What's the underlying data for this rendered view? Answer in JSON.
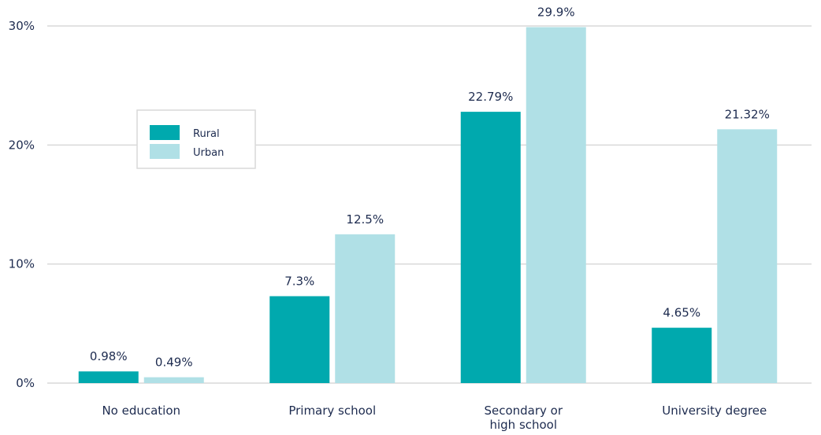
{
  "chart_data": {
    "type": "bar",
    "title": "",
    "xlabel": "",
    "ylabel": "",
    "categories": [
      [
        "No education"
      ],
      [
        "Primary school"
      ],
      [
        "Secondary or",
        "high school"
      ],
      [
        "University degree"
      ]
    ],
    "series": [
      {
        "name": "Rural",
        "color": "#00a9ae",
        "values": [
          0.98,
          7.3,
          22.79,
          4.65
        ],
        "labels": [
          "0.98%",
          "7.3%",
          "22.79%",
          "4.65%"
        ]
      },
      {
        "name": "Urban",
        "color": "#b0e0e6",
        "values": [
          0.49,
          12.5,
          29.9,
          21.32
        ],
        "labels": [
          "0.49%",
          "12.5%",
          "29.9%",
          "21.32%"
        ]
      }
    ],
    "ylim": [
      0,
      30
    ],
    "yticks": [
      0,
      10,
      20,
      30
    ],
    "ytick_labels": [
      "0%",
      "10%",
      "20%",
      "30%"
    ],
    "grid": true,
    "legend_position": "upper-left",
    "gridline_color": "#d9d9d9"
  }
}
